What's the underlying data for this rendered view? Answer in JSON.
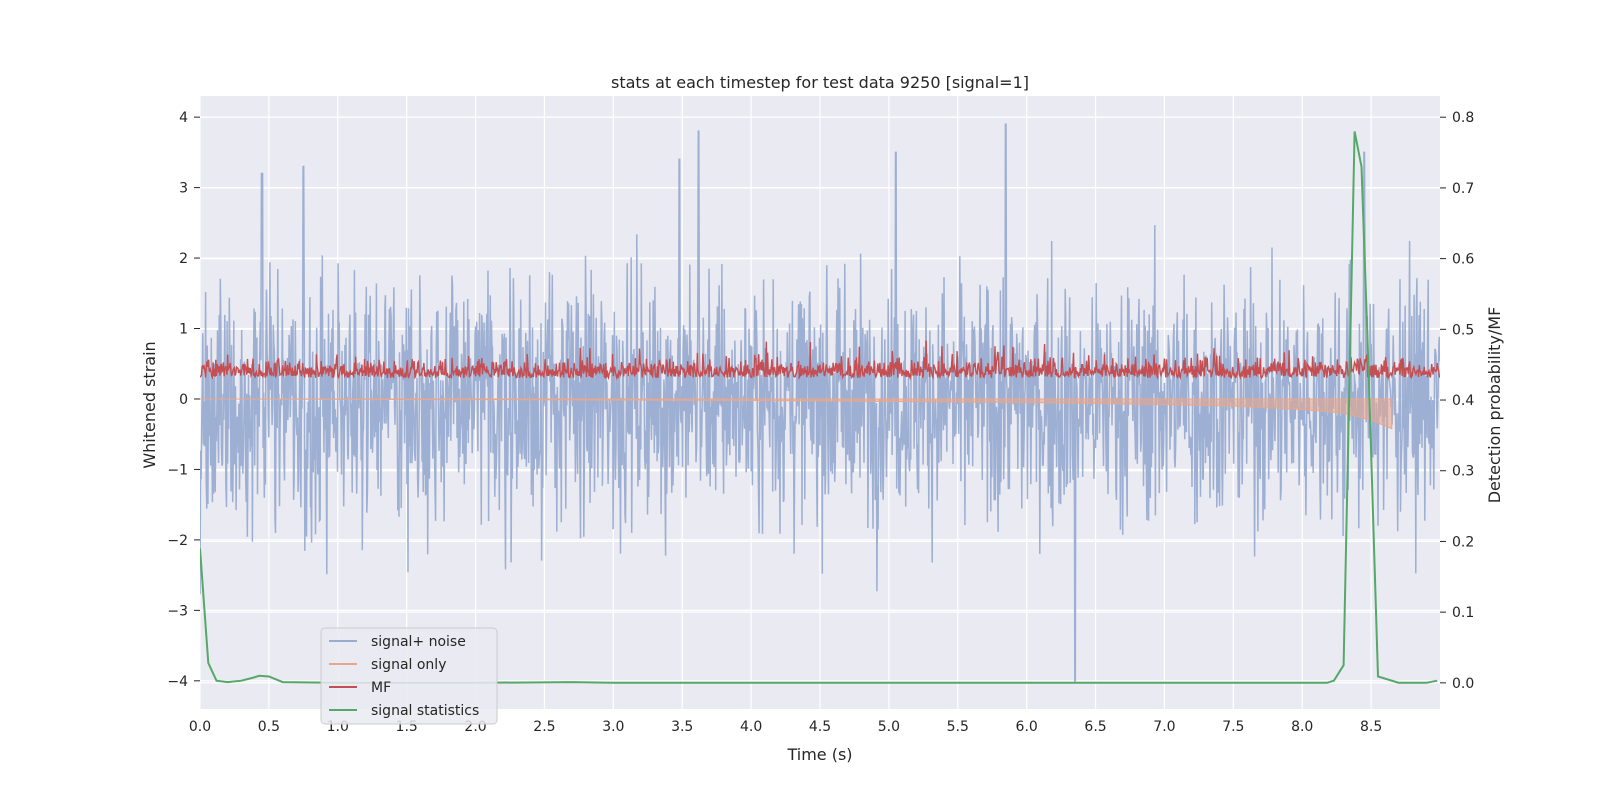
{
  "chart_data": {
    "type": "line",
    "title": "stats at each timestep for test data 9250 [signal=1]",
    "xlabel": "Time (s)",
    "ylabel_left": "Whitened strain",
    "ylabel_right": "Detection probability/MF",
    "xlim": [
      0.0,
      9.0
    ],
    "ylim_left": [
      -4.4,
      4.3
    ],
    "ylim_right": [
      -0.037,
      0.83
    ],
    "x_ticks": [
      "0.0",
      "0.5",
      "1.0",
      "1.5",
      "2.0",
      "2.5",
      "3.0",
      "3.5",
      "4.0",
      "4.5",
      "5.0",
      "5.5",
      "6.0",
      "6.5",
      "7.0",
      "7.5",
      "8.0",
      "8.5"
    ],
    "y_ticks_left": [
      "4",
      "3",
      "2",
      "1",
      "0",
      "−1",
      "−2",
      "−3",
      "−4"
    ],
    "y_ticks_right": [
      "0.8",
      "0.7",
      "0.6",
      "0.5",
      "0.4",
      "0.3",
      "0.2",
      "0.1",
      "0.0"
    ],
    "grid": true,
    "legend_position": "lower-left",
    "colors": {
      "background": "#eaeaf2",
      "grid": "#ffffff",
      "signal_noise": "#99acd0",
      "signal_only": "#e8a78c",
      "mf": "#c44e52",
      "signal_statistics": "#55a868"
    },
    "series": [
      {
        "name": "signal+ noise",
        "axis": "left",
        "description_values": "dense whitened strain oscillating roughly between -4 and 4",
        "envelope_peaks_x": [
          0.45,
          0.75,
          3.48,
          3.62,
          5.05,
          5.85,
          6.35,
          8.45
        ],
        "envelope_peaks_y": [
          3.2,
          3.3,
          3.4,
          3.8,
          3.5,
          3.9,
          -4.0,
          3.5
        ]
      },
      {
        "name": "signal only",
        "axis": "left",
        "x": [
          0.0,
          2.0,
          4.0,
          6.0,
          7.0,
          7.5,
          8.0,
          8.3,
          8.5,
          8.65
        ],
        "y_min": [
          0.0,
          -0.01,
          -0.02,
          -0.05,
          -0.08,
          -0.1,
          -0.15,
          -0.2,
          -0.3,
          -0.42
        ],
        "y_max": [
          0.0,
          0.0,
          0.0,
          0.0,
          0.0,
          0.0,
          0.0,
          0.0,
          0.0,
          0.0
        ]
      },
      {
        "name": "MF",
        "axis": "left",
        "description_values": "noisy band between about 0.1 and 0.8, peaks near 1.0",
        "range": [
          0.0,
          1.0
        ]
      },
      {
        "name": "signal statistics",
        "axis": "right",
        "x": [
          0.0,
          0.06,
          0.12,
          0.2,
          0.3,
          0.38,
          0.43,
          0.5,
          0.6,
          1.0,
          2.0,
          2.7,
          3.0,
          4.0,
          5.0,
          6.0,
          7.0,
          8.0,
          8.18,
          8.23,
          8.3,
          8.38,
          8.43,
          8.48,
          8.55,
          8.7,
          8.9,
          8.98
        ],
        "y": [
          0.19,
          0.028,
          0.003,
          0.001,
          0.003,
          0.007,
          0.01,
          0.009,
          0.001,
          0.0,
          0.0,
          0.001,
          0.0,
          0.0,
          0.0,
          0.0,
          0.0,
          0.0,
          0.0,
          0.003,
          0.025,
          0.78,
          0.73,
          0.45,
          0.009,
          0.0,
          0.0,
          0.003
        ]
      }
    ]
  }
}
